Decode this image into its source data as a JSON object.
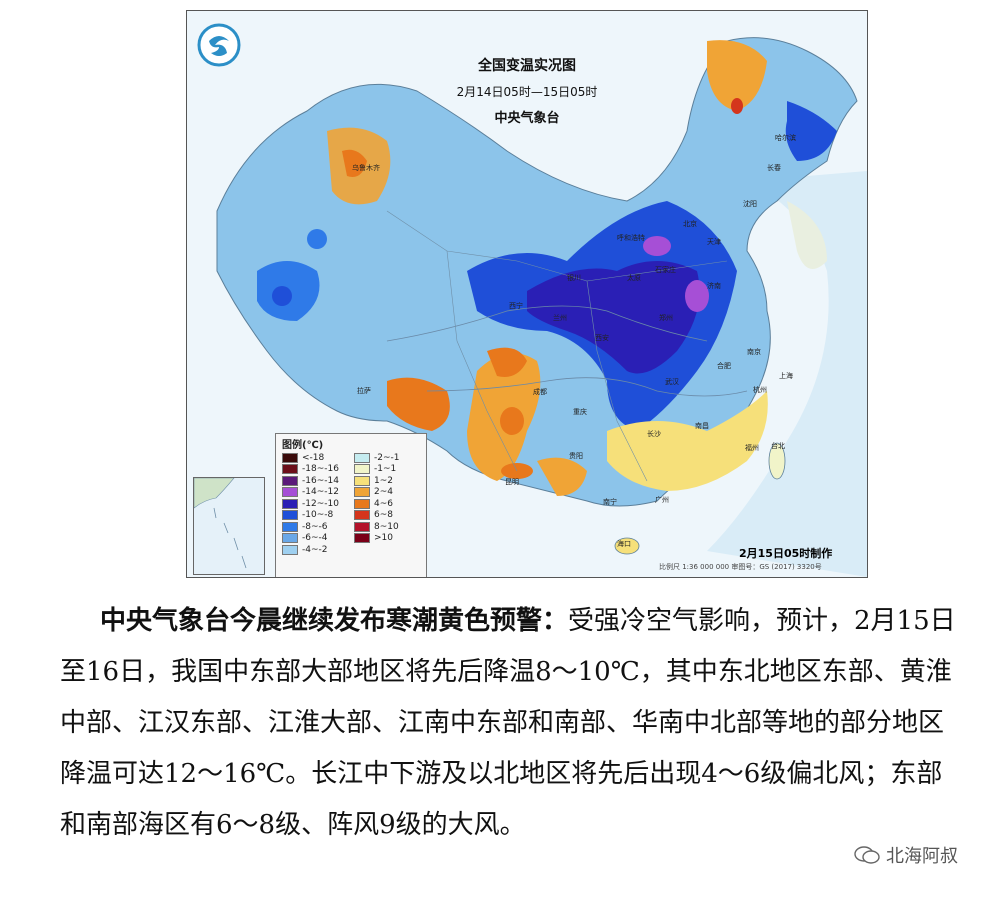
{
  "map": {
    "title": "全国变温实况图",
    "period": "2月14日05时—15日05时",
    "issuer": "中央气象台",
    "timestamp": "2月15日05时制作",
    "scale_note": "比例尺 1:36 000 000    审图号：GS (2017) 3320号",
    "legend": {
      "title": "图例(℃)",
      "items": [
        {
          "label": "<-18",
          "color": "#3a0a0a"
        },
        {
          "label": "-18~-16",
          "color": "#6b0f1a"
        },
        {
          "label": "-16~-14",
          "color": "#5a1a7a"
        },
        {
          "label": "-14~-12",
          "color": "#a64fd6"
        },
        {
          "label": "-12~-10",
          "color": "#2a1fb5"
        },
        {
          "label": "-10~-8",
          "color": "#1f4fd8"
        },
        {
          "label": "-8~-6",
          "color": "#2f7ae8"
        },
        {
          "label": "-6~-4",
          "color": "#6aa8e8"
        },
        {
          "label": "-4~-2",
          "color": "#9fd0f0"
        },
        {
          "label": "-2~-1",
          "color": "#c5ecf0"
        },
        {
          "label": "-1~1",
          "color": "#f1f4c9"
        },
        {
          "label": "1~2",
          "color": "#f6e07a"
        },
        {
          "label": "2~4",
          "color": "#f0a436"
        },
        {
          "label": "4~6",
          "color": "#e8781c"
        },
        {
          "label": "6~8",
          "color": "#d4351c"
        },
        {
          "label": "8~10",
          "color": "#b3122a"
        },
        {
          "label": ">10",
          "color": "#7a0018"
        }
      ]
    },
    "cities": [
      "乌鲁木齐",
      "拉萨",
      "西宁",
      "兰州",
      "银川",
      "呼和浩特",
      "北京",
      "天津",
      "石家庄",
      "太原",
      "济南",
      "郑州",
      "西安",
      "成都",
      "重庆",
      "贵阳",
      "昆明",
      "南宁",
      "广州",
      "海口",
      "长沙",
      "南昌",
      "武汉",
      "合肥",
      "南京",
      "杭州",
      "福州",
      "台北",
      "上海",
      "沈阳",
      "长春",
      "哈尔滨"
    ]
  },
  "article": {
    "headline": "中央气象台今晨继续发布寒潮黄色预警：",
    "body": "受强冷空气影响，预计，2月15日至16日，我国中东部大部地区将先后降温8～10℃，其中东北地区东部、黄淮中部、江汉东部、江淮大部、江南中东部和南部、华南中北部等地的部分地区降温可达12～16℃。长江中下游及以北地区将先后出现4～6级偏北风；东部和南部海区有6～8级、阵风9级的大风。"
  },
  "watermark": {
    "text": "北海阿叔"
  }
}
